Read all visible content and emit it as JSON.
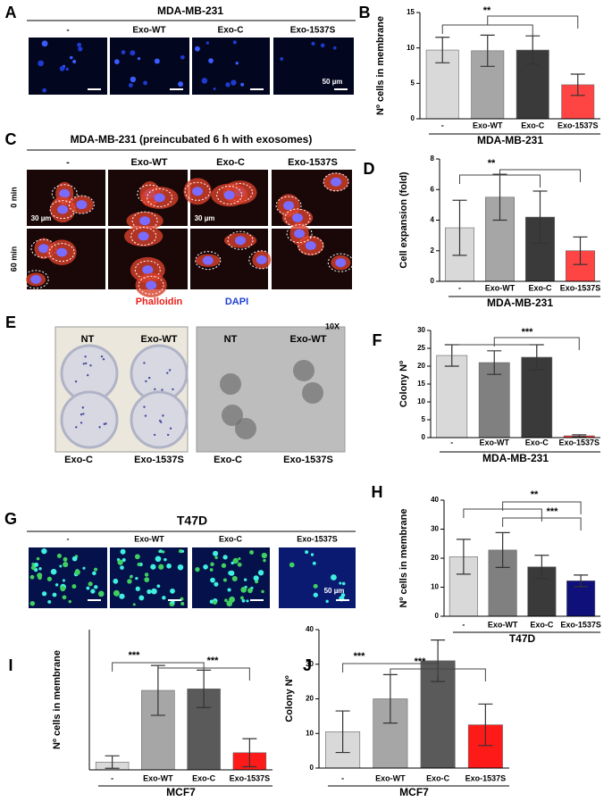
{
  "chart_data": [
    {
      "panel": "B",
      "type": "bar",
      "ylabel": "Nº cells in membrane",
      "xlabel": "MDA-MB-231",
      "categories": [
        "-",
        "Exo-WT",
        "Exo-C",
        "Exo-1537S"
      ],
      "values": [
        9.7,
        9.6,
        9.7,
        4.8
      ],
      "errors": [
        1.8,
        2.2,
        2.0,
        1.5
      ],
      "colors": [
        "#d9d9d9",
        "#a6a6a6",
        "#3a3a3a",
        "#ff4444"
      ],
      "ylim": [
        0,
        15
      ],
      "yticks": [
        0,
        5,
        10,
        15
      ],
      "annotations": [
        "**"
      ]
    },
    {
      "panel": "D",
      "type": "bar",
      "ylabel": "Cell expansion (fold)",
      "xlabel": "MDA-MB-231",
      "categories": [
        "-",
        "Exo-WT",
        "Exo-C",
        "Exo-1537S"
      ],
      "values": [
        3.5,
        5.5,
        4.2,
        2.0
      ],
      "errors": [
        1.8,
        1.5,
        1.7,
        0.9
      ],
      "colors": [
        "#d9d9d9",
        "#a6a6a6",
        "#3a3a3a",
        "#ff4444"
      ],
      "ylim": [
        0,
        8
      ],
      "yticks": [
        0,
        2,
        4,
        6,
        8
      ],
      "annotations": [
        "**"
      ]
    },
    {
      "panel": "F",
      "type": "bar",
      "ylabel": "Colony Nº",
      "xlabel": "MDA-MB-231",
      "categories": [
        "-",
        "Exo-WT",
        "Exo-C",
        "Exo-1537S"
      ],
      "values": [
        23,
        21,
        22.5,
        0.5
      ],
      "errors": [
        3,
        3.3,
        3.5,
        0.3
      ],
      "colors": [
        "#d9d9d9",
        "#808080",
        "#3a3a3a",
        "#ff3030"
      ],
      "ylim": [
        0,
        30
      ],
      "yticks": [
        0,
        5,
        10,
        15,
        20,
        25,
        30
      ],
      "annotations": [
        "***"
      ]
    },
    {
      "panel": "H",
      "type": "bar",
      "ylabel": "Nº cells in membrane",
      "xlabel": "T47D",
      "categories": [
        "-",
        "Exo-WT",
        "Exo-C",
        "Exo-1537S"
      ],
      "values": [
        20.5,
        22.8,
        17,
        12.2
      ],
      "errors": [
        6,
        6,
        4,
        2
      ],
      "colors": [
        "#d9d9d9",
        "#808080",
        "#3a3a3a",
        "#10107a"
      ],
      "ylim": [
        0,
        40
      ],
      "yticks": [
        0,
        10,
        20,
        30,
        40
      ],
      "annotations": [
        "**",
        "***"
      ]
    },
    {
      "panel": "I",
      "type": "bar",
      "ylabel": "Nº cells in membrane",
      "xlabel": "MCF7",
      "categories": [
        "-",
        "Exo-WT",
        "Exo-C",
        "Exo-1537S"
      ],
      "values": [
        5,
        51,
        52,
        11
      ],
      "errors": [
        4,
        16,
        12,
        9
      ],
      "colors": [
        "#d9d9d9",
        "#a6a6a6",
        "#5a5a5a",
        "#ff1a1a"
      ],
      "ylim": [
        0,
        90
      ],
      "annotations": [
        "***",
        "***"
      ]
    },
    {
      "panel": "J",
      "type": "bar",
      "ylabel": "Colony Nº",
      "xlabel": "MCF7",
      "categories": [
        "-",
        "Exo-WT",
        "Exo-C",
        "Exo-1537S"
      ],
      "values": [
        10.5,
        20,
        31,
        12.5
      ],
      "errors": [
        6,
        7,
        6,
        6
      ],
      "colors": [
        "#d9d9d9",
        "#a6a6a6",
        "#5a5a5a",
        "#ff1a1a"
      ],
      "ylim": [
        0,
        40
      ],
      "yticks": [
        0,
        10,
        20,
        30,
        40
      ],
      "annotations": [
        "***",
        "***"
      ]
    }
  ],
  "images": {
    "A": {
      "letter": "A",
      "title": "MDA-MB-231",
      "columns": [
        "-",
        "Exo-WT",
        "Exo-C",
        "Exo-1537S"
      ],
      "scale": "50 µm"
    },
    "C": {
      "letter": "C",
      "title": "MDA-MB-231  (preincubated 6 h with exosomes)",
      "columns": [
        "-",
        "Exo-WT",
        "Exo-C",
        "Exo-1537S"
      ],
      "rows": [
        "0 min",
        "60 min"
      ],
      "scale": "30 µm",
      "stains": [
        "Phalloidin",
        "DAPI"
      ]
    },
    "E": {
      "letter": "E",
      "magnification": "10X",
      "plates": [
        "NT",
        "Exo-WT",
        "Exo-C",
        "Exo-1537S"
      ],
      "micrographs": [
        "NT",
        "Exo-WT",
        "Exo-C",
        "Exo-1537S"
      ]
    },
    "G": {
      "letter": "G",
      "title": "T47D",
      "columns": [
        "-",
        "Exo-WT",
        "Exo-C",
        "Exo-1537S"
      ],
      "scale": "50 µm"
    }
  }
}
